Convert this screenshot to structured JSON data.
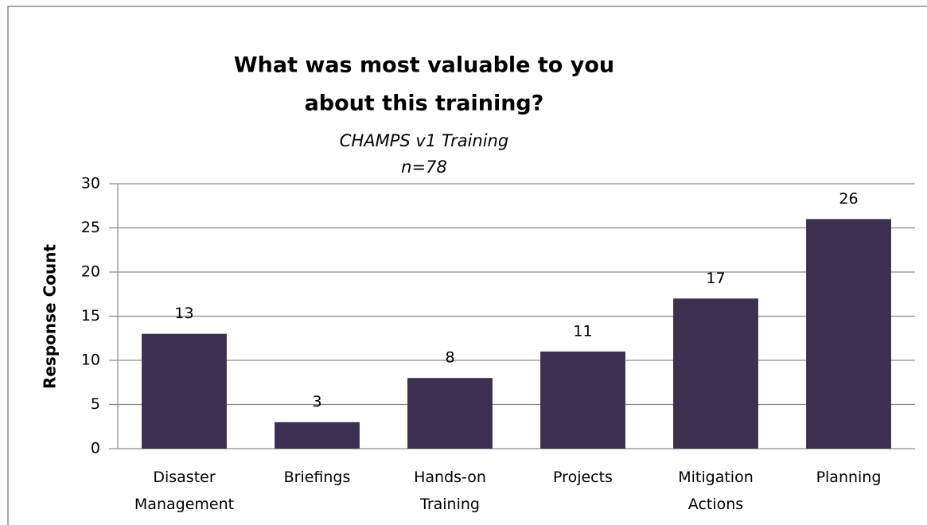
{
  "chart_data": {
    "type": "bar",
    "title": [
      "What was most valuable to you",
      "about this training?"
    ],
    "subtitle": [
      "CHAMPS v1 Training",
      "n=78"
    ],
    "y_axis_label": "Response Count",
    "categories": [
      "Disaster Management",
      "Briefings",
      "Hands-on Training",
      "Projects",
      "Mitigation Actions",
      "Planning"
    ],
    "values": [
      13,
      3,
      8,
      11,
      17,
      26
    ],
    "color": "#3d2f50",
    "ylim": [
      0,
      30
    ],
    "yticks": [
      0,
      5,
      10,
      15,
      20,
      25,
      30
    ],
    "grid": true
  }
}
